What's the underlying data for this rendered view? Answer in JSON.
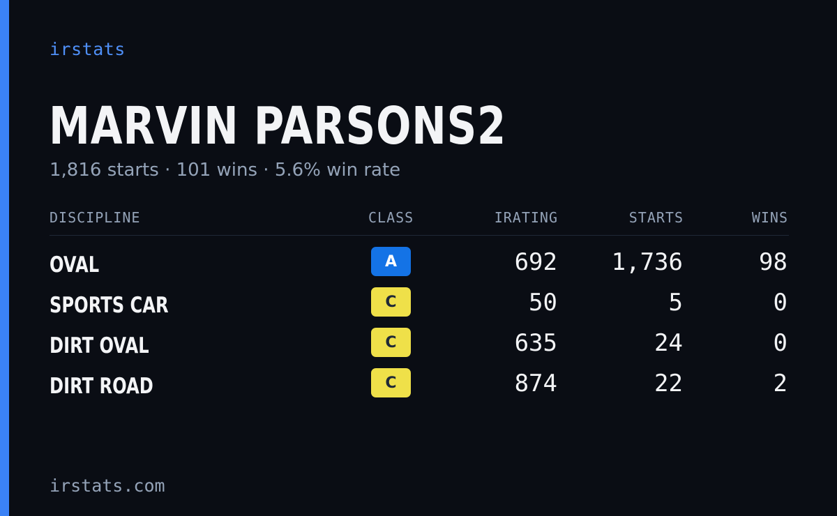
{
  "brand": "irstats",
  "driver": {
    "name": "MARVIN PARSONS2",
    "starts": "1,816 starts",
    "wins": "101 wins",
    "win_rate": "5.6% win rate",
    "separator": "·"
  },
  "table": {
    "headers": {
      "discipline": "DISCIPLINE",
      "class": "CLASS",
      "irating": "IRATING",
      "starts": "STARTS",
      "wins": "WINS"
    },
    "rows": [
      {
        "discipline": "OVAL",
        "class": "A",
        "irating": "692",
        "starts": "1,736",
        "wins": "98"
      },
      {
        "discipline": "SPORTS CAR",
        "class": "C",
        "irating": "50",
        "starts": "5",
        "wins": "0"
      },
      {
        "discipline": "DIRT OVAL",
        "class": "C",
        "irating": "635",
        "starts": "24",
        "wins": "0"
      },
      {
        "discipline": "DIRT ROAD",
        "class": "C",
        "irating": "874",
        "starts": "22",
        "wins": "2"
      }
    ]
  },
  "footer": "irstats.com",
  "colors": {
    "background": "#0a0d14",
    "accent": "#3b82f6",
    "class_a": "#1473e6",
    "class_c": "#efe049",
    "muted_text": "#94a3b8"
  }
}
